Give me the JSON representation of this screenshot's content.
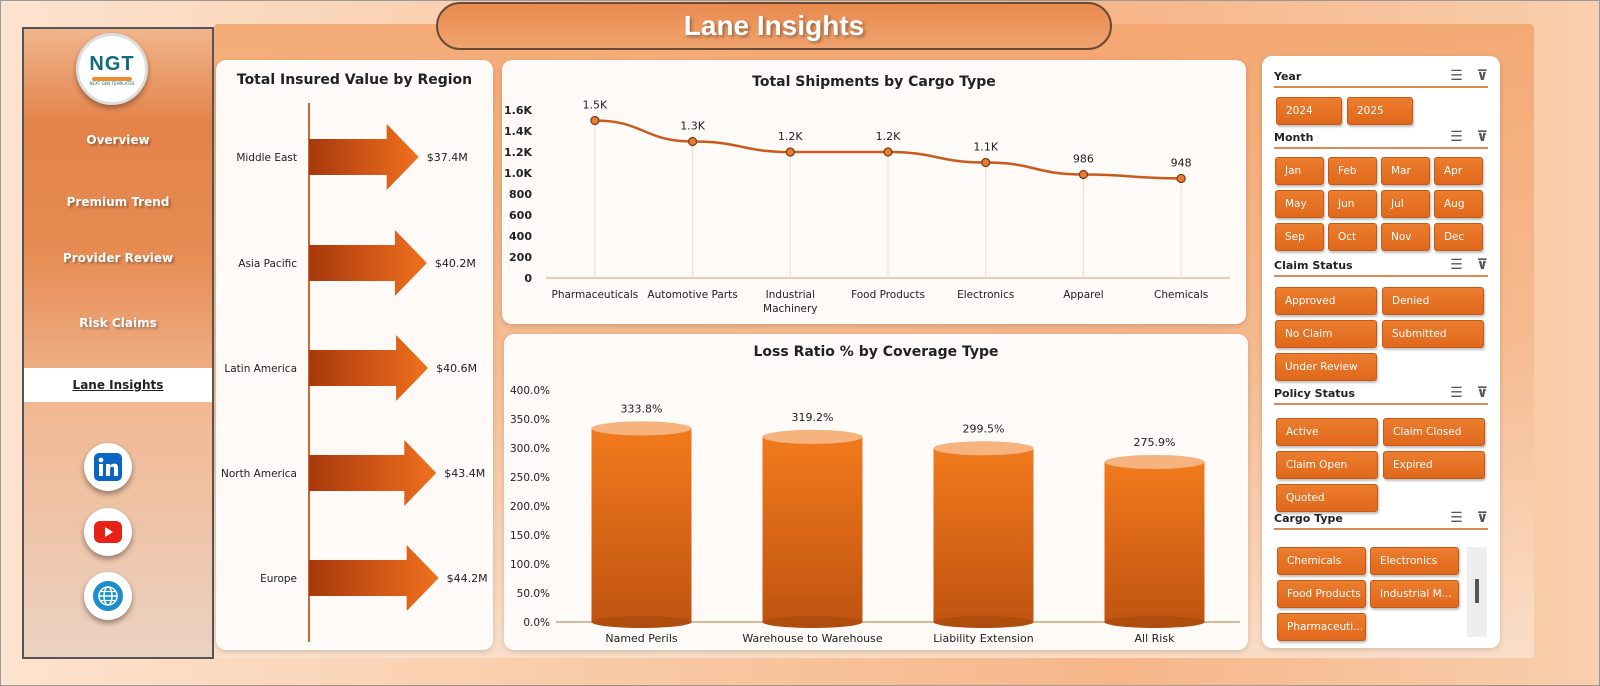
{
  "title": "Lane Insights",
  "logo": {
    "text": "NGT",
    "subtitle": "NEXT GEN TEMPLATES"
  },
  "nav": [
    {
      "label": "Overview",
      "active": false
    },
    {
      "label": "Premium Trend",
      "active": false
    },
    {
      "label": "Provider Review",
      "active": false
    },
    {
      "label": "Risk Claims",
      "active": false
    },
    {
      "label": "Lane Insights",
      "active": true
    }
  ],
  "social": [
    {
      "icon": "linkedin-icon",
      "color": "#0a66c2"
    },
    {
      "icon": "youtube-icon",
      "color": "#e62117"
    },
    {
      "icon": "globe-icon",
      "color": "#1a8fc9"
    }
  ],
  "colors": {
    "accent": "#e0681c",
    "line": "#c85a1c",
    "axis": "#d4a37a"
  },
  "chart_data": [
    {
      "type": "bar",
      "orientation": "horizontal",
      "title": "Total Insured Value by Region",
      "categories": [
        "Middle East",
        "Asia Pacific",
        "Latin America",
        "North America",
        "Europe"
      ],
      "values": [
        37.4,
        40.2,
        40.6,
        43.4,
        44.2
      ],
      "labels": [
        "$37.4M",
        "$40.2M",
        "$40.6M",
        "$43.4M",
        "$44.2M"
      ],
      "unit": "$M"
    },
    {
      "type": "line",
      "title": "Total Shipments by Cargo Type",
      "categories": [
        "Pharmaceuticals",
        "Automotive Parts",
        "Industrial Machinery",
        "Food Products",
        "Electronics",
        "Apparel",
        "Chemicals"
      ],
      "values": [
        1500,
        1300,
        1200,
        1200,
        1100,
        986,
        948
      ],
      "labels": [
        "1.5K",
        "1.3K",
        "1.2K",
        "1.2K",
        "1.1K",
        "986",
        "948"
      ],
      "yticks": [
        "0",
        "200",
        "400",
        "600",
        "800",
        "1.0K",
        "1.2K",
        "1.4K",
        "1.6K"
      ],
      "ylim": [
        0,
        1600
      ]
    },
    {
      "type": "bar",
      "title": "Loss Ratio % by Coverage Type",
      "categories": [
        "Named Perils",
        "Warehouse to Warehouse",
        "Liability Extension",
        "All Risk"
      ],
      "values": [
        333.8,
        319.2,
        299.5,
        275.9
      ],
      "labels": [
        "333.8%",
        "319.2%",
        "299.5%",
        "275.9%"
      ],
      "yticks": [
        "0.0%",
        "50.0%",
        "100.0%",
        "150.0%",
        "200.0%",
        "250.0%",
        "300.0%",
        "350.0%",
        "400.0%"
      ],
      "ylim": [
        0,
        400
      ]
    }
  ],
  "slicers": {
    "year": {
      "label": "Year",
      "options": [
        "2024",
        "2025"
      ]
    },
    "month": {
      "label": "Month",
      "options": [
        "Jan",
        "Feb",
        "Mar",
        "Apr",
        "May",
        "Jun",
        "Jul",
        "Aug",
        "Sep",
        "Oct",
        "Nov",
        "Dec"
      ]
    },
    "claim_status": {
      "label": "Claim Status",
      "options": [
        "Approved",
        "Denied",
        "No Claim",
        "Submitted",
        "Under Review"
      ]
    },
    "policy_status": {
      "label": "Policy Status",
      "options": [
        "Active",
        "Claim Closed",
        "Claim Open",
        "Expired",
        "Quoted"
      ]
    },
    "cargo_type": {
      "label": "Cargo Type",
      "options": [
        "Chemicals",
        "Electronics",
        "Food Products",
        "Industrial M...",
        "Pharmaceuti..."
      ]
    }
  }
}
